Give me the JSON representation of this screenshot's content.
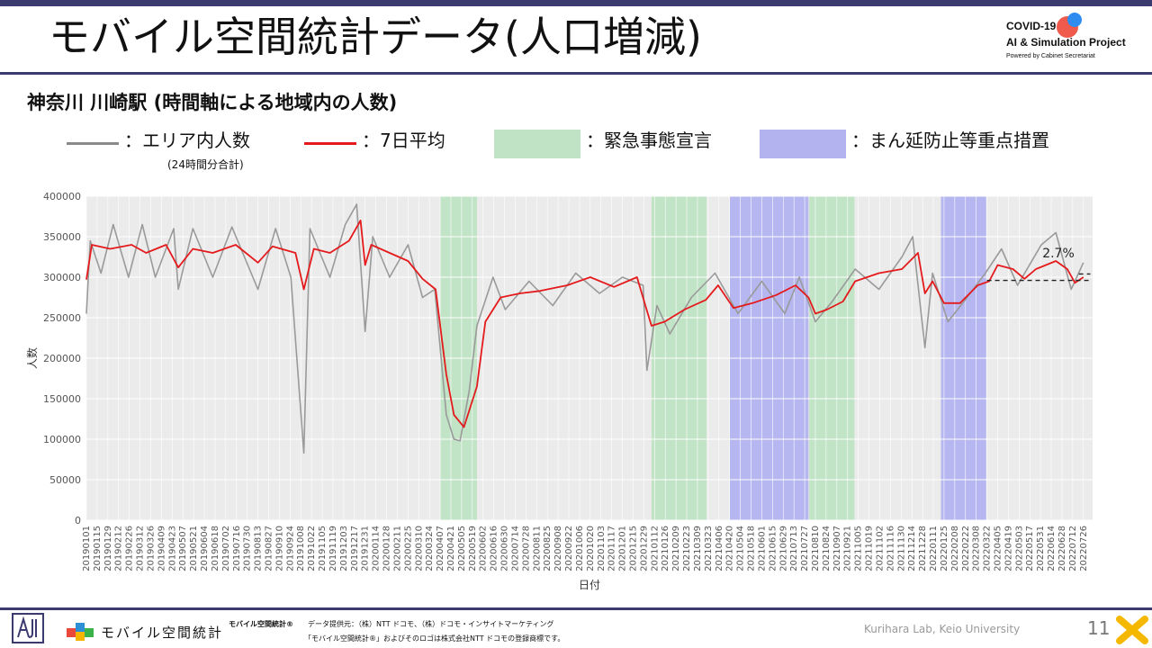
{
  "header": {
    "title": "モバイル空間統計データ(人口増減)",
    "logo_line1": "COVID-19",
    "logo_line2": "AI & Simulation Project",
    "logo_line3": "Powered by Cabinet Secretariat"
  },
  "subtitle": "神奈川 川崎駅 (時間軸による地域内の人数)",
  "legend": {
    "daily": "：エリア内人数",
    "daily_note": "(24時間分合計)",
    "avg": "：7日平均",
    "emergency": "：緊急事態宣言",
    "priority": "：まん延防止等重点措置"
  },
  "colors": {
    "daily": "#9a9a9a",
    "avg": "#e41a1c",
    "emergency": "#bfe3c4",
    "priority": "#b3b3f0",
    "plot_bg": "#ebebeb",
    "brand": "#3c3b70"
  },
  "chart_data": {
    "type": "line",
    "xlabel": "日付",
    "ylabel": "人数",
    "ylim": [
      0,
      400000
    ],
    "yticks": [
      0,
      50000,
      100000,
      150000,
      200000,
      250000,
      300000,
      350000,
      400000
    ],
    "ytick_labels": [
      "0",
      "50000",
      "100000",
      "150000",
      "200000",
      "250000",
      "300000",
      "350000",
      "400000"
    ],
    "grid": true,
    "x_start": "2019-01-01",
    "x_end": "2022-08-07",
    "xtick_labels": [
      "20190101",
      "20190115",
      "20190129",
      "20190212",
      "20190226",
      "20190312",
      "20190326",
      "20190409",
      "20190423",
      "20190507",
      "20190521",
      "20190604",
      "20190618",
      "20190702",
      "20190716",
      "20190730",
      "20190813",
      "20190827",
      "20190910",
      "20190924",
      "20191008",
      "20191022",
      "20191105",
      "20191119",
      "20191203",
      "20191217",
      "20191231",
      "20200114",
      "20200128",
      "20200211",
      "20200225",
      "20200310",
      "20200324",
      "20200407",
      "20200421",
      "20200505",
      "20200519",
      "20200602",
      "20200616",
      "20200630",
      "20200714",
      "20200728",
      "20200811",
      "20200825",
      "20200908",
      "20200922",
      "20201006",
      "20201020",
      "20201103",
      "20201117",
      "20201201",
      "20201215",
      "20201229",
      "20210112",
      "20210126",
      "20210209",
      "20210223",
      "20210309",
      "20210323",
      "20210406",
      "20210420",
      "20210504",
      "20210518",
      "20210601",
      "20210615",
      "20210629",
      "20210713",
      "20210727",
      "20210810",
      "20210824",
      "20210907",
      "20210921",
      "20211005",
      "20211019",
      "20211102",
      "20211116",
      "20211130",
      "20211214",
      "20211228",
      "20220111",
      "20220125",
      "20220208",
      "20220222",
      "20220308",
      "20220322",
      "20220405",
      "20220419",
      "20220503",
      "20220517",
      "20220531",
      "20220614",
      "20220628",
      "20220712",
      "20220726"
    ],
    "emergency_periods": [
      [
        "2020-04-07",
        "2020-05-25"
      ],
      [
        "2021-01-08",
        "2021-03-21"
      ],
      [
        "2021-08-02",
        "2021-09-30"
      ]
    ],
    "priority_periods": [
      [
        "2021-04-20",
        "2021-08-01"
      ],
      [
        "2022-01-21",
        "2022-03-21"
      ]
    ],
    "series": [
      {
        "name": "エリア内人数",
        "points": [
          [
            "2019-01-01",
            255000
          ],
          [
            "2019-01-06",
            345000
          ],
          [
            "2019-01-20",
            305000
          ],
          [
            "2019-02-05",
            365000
          ],
          [
            "2019-02-25",
            300000
          ],
          [
            "2019-03-15",
            365000
          ],
          [
            "2019-04-01",
            300000
          ],
          [
            "2019-04-25",
            360000
          ],
          [
            "2019-05-01",
            285000
          ],
          [
            "2019-05-20",
            360000
          ],
          [
            "2019-06-15",
            300000
          ],
          [
            "2019-07-10",
            362000
          ],
          [
            "2019-08-13",
            285000
          ],
          [
            "2019-09-05",
            360000
          ],
          [
            "2019-09-25",
            300000
          ],
          [
            "2019-10-12",
            83000
          ],
          [
            "2019-10-20",
            360000
          ],
          [
            "2019-11-15",
            300000
          ],
          [
            "2019-12-05",
            365000
          ],
          [
            "2019-12-20",
            390000
          ],
          [
            "2019-12-31",
            233000
          ],
          [
            "2020-01-10",
            350000
          ],
          [
            "2020-02-01",
            300000
          ],
          [
            "2020-02-25",
            340000
          ],
          [
            "2020-03-15",
            275000
          ],
          [
            "2020-03-31",
            285000
          ],
          [
            "2020-04-15",
            130000
          ],
          [
            "2020-04-25",
            100000
          ],
          [
            "2020-05-03",
            98000
          ],
          [
            "2020-05-15",
            160000
          ],
          [
            "2020-05-25",
            240000
          ],
          [
            "2020-06-15",
            300000
          ],
          [
            "2020-07-01",
            260000
          ],
          [
            "2020-08-01",
            295000
          ],
          [
            "2020-09-01",
            265000
          ],
          [
            "2020-10-01",
            305000
          ],
          [
            "2020-11-01",
            280000
          ],
          [
            "2020-12-01",
            300000
          ],
          [
            "2020-12-28",
            290000
          ],
          [
            "2021-01-02",
            185000
          ],
          [
            "2021-01-15",
            265000
          ],
          [
            "2021-02-01",
            230000
          ],
          [
            "2021-03-01",
            275000
          ],
          [
            "2021-04-01",
            305000
          ],
          [
            "2021-05-01",
            255000
          ],
          [
            "2021-06-01",
            295000
          ],
          [
            "2021-07-01",
            255000
          ],
          [
            "2021-07-20",
            300000
          ],
          [
            "2021-08-10",
            245000
          ],
          [
            "2021-09-01",
            270000
          ],
          [
            "2021-10-01",
            310000
          ],
          [
            "2021-11-01",
            285000
          ],
          [
            "2021-12-01",
            325000
          ],
          [
            "2021-12-15",
            350000
          ],
          [
            "2021-12-31",
            213000
          ],
          [
            "2022-01-10",
            305000
          ],
          [
            "2022-01-30",
            245000
          ],
          [
            "2022-02-20",
            270000
          ],
          [
            "2022-03-20",
            305000
          ],
          [
            "2022-04-10",
            335000
          ],
          [
            "2022-05-01",
            290000
          ],
          [
            "2022-06-01",
            340000
          ],
          [
            "2022-06-20",
            355000
          ],
          [
            "2022-07-10",
            285000
          ],
          [
            "2022-07-26",
            318000
          ]
        ]
      },
      {
        "name": "7日平均",
        "points": [
          [
            "2019-01-01",
            297000
          ],
          [
            "2019-01-08",
            340000
          ],
          [
            "2019-02-01",
            335000
          ],
          [
            "2019-03-01",
            340000
          ],
          [
            "2019-03-20",
            330000
          ],
          [
            "2019-04-15",
            340000
          ],
          [
            "2019-05-01",
            312000
          ],
          [
            "2019-05-20",
            335000
          ],
          [
            "2019-06-15",
            330000
          ],
          [
            "2019-07-15",
            340000
          ],
          [
            "2019-08-13",
            318000
          ],
          [
            "2019-09-01",
            338000
          ],
          [
            "2019-10-01",
            330000
          ],
          [
            "2019-10-12",
            285000
          ],
          [
            "2019-10-25",
            335000
          ],
          [
            "2019-11-15",
            330000
          ],
          [
            "2019-12-10",
            345000
          ],
          [
            "2019-12-25",
            370000
          ],
          [
            "2019-12-31",
            315000
          ],
          [
            "2020-01-08",
            340000
          ],
          [
            "2020-02-01",
            330000
          ],
          [
            "2020-02-25",
            320000
          ],
          [
            "2020-03-15",
            298000
          ],
          [
            "2020-04-01",
            285000
          ],
          [
            "2020-04-15",
            180000
          ],
          [
            "2020-04-25",
            130000
          ],
          [
            "2020-05-08",
            115000
          ],
          [
            "2020-05-25",
            165000
          ],
          [
            "2020-06-05",
            245000
          ],
          [
            "2020-06-25",
            275000
          ],
          [
            "2020-07-20",
            280000
          ],
          [
            "2020-08-15",
            283000
          ],
          [
            "2020-09-20",
            290000
          ],
          [
            "2020-10-20",
            300000
          ],
          [
            "2020-11-20",
            288000
          ],
          [
            "2020-12-20",
            300000
          ],
          [
            "2020-12-31",
            265000
          ],
          [
            "2021-01-08",
            240000
          ],
          [
            "2021-01-25",
            245000
          ],
          [
            "2021-02-20",
            260000
          ],
          [
            "2021-03-20",
            272000
          ],
          [
            "2021-04-05",
            290000
          ],
          [
            "2021-04-25",
            262000
          ],
          [
            "2021-05-20",
            268000
          ],
          [
            "2021-06-20",
            278000
          ],
          [
            "2021-07-15",
            290000
          ],
          [
            "2021-08-01",
            275000
          ],
          [
            "2021-08-10",
            255000
          ],
          [
            "2021-08-25",
            260000
          ],
          [
            "2021-09-15",
            270000
          ],
          [
            "2021-10-01",
            295000
          ],
          [
            "2021-11-01",
            305000
          ],
          [
            "2021-12-01",
            310000
          ],
          [
            "2021-12-22",
            330000
          ],
          [
            "2021-12-31",
            280000
          ],
          [
            "2022-01-10",
            295000
          ],
          [
            "2022-01-25",
            268000
          ],
          [
            "2022-02-15",
            268000
          ],
          [
            "2022-03-10",
            290000
          ],
          [
            "2022-03-25",
            295000
          ],
          [
            "2022-04-05",
            315000
          ],
          [
            "2022-04-25",
            310000
          ],
          [
            "2022-05-10",
            298000
          ],
          [
            "2022-05-25",
            310000
          ],
          [
            "2022-06-20",
            320000
          ],
          [
            "2022-07-05",
            310000
          ],
          [
            "2022-07-15",
            293000
          ],
          [
            "2022-07-26",
            300000
          ]
        ]
      }
    ],
    "reference": {
      "label": "2.7%",
      "baseline": 296000,
      "current": 304000,
      "from": "2022-03-22",
      "to": "2022-08-04"
    }
  },
  "footer": {
    "brand_logo_text": "モバイル空間統計",
    "registered": "モバイル空間統計®",
    "provider": "データ提供元：（株）NTT ドコモ、（株）ドコモ・インサイトマーケティング",
    "trademark": "「モバイル空間統計®」およびそのロゴは株式会社NTT ドコモの登録商標です。",
    "credit": "Kurihara Lab, Keio University",
    "page_number": "11"
  }
}
